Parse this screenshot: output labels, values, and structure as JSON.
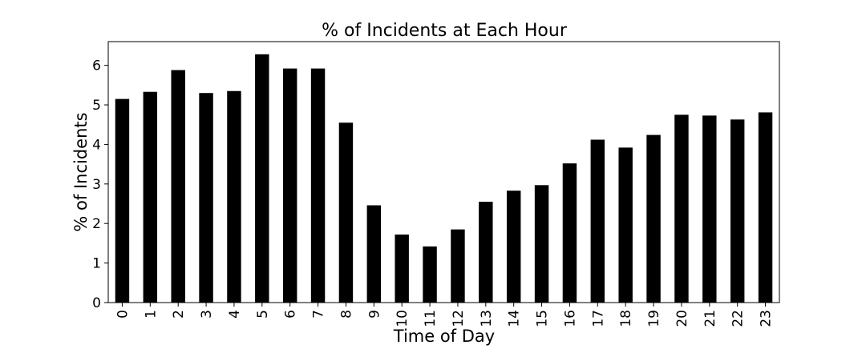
{
  "chart_data": {
    "type": "bar",
    "title": "% of Incidents at Each Hour",
    "xlabel": "Time of Day",
    "ylabel": "% of Incidents",
    "categories": [
      "0",
      "1",
      "2",
      "3",
      "4",
      "5",
      "6",
      "7",
      "8",
      "9",
      "10",
      "11",
      "12",
      "13",
      "14",
      "15",
      "16",
      "17",
      "18",
      "19",
      "20",
      "21",
      "22",
      "23"
    ],
    "values": [
      5.15,
      5.33,
      5.88,
      5.3,
      5.35,
      6.28,
      5.92,
      5.92,
      4.55,
      2.46,
      1.72,
      1.42,
      1.85,
      2.55,
      2.83,
      2.97,
      3.52,
      4.12,
      3.92,
      4.24,
      4.75,
      4.73,
      4.63,
      4.81
    ],
    "ylim": [
      0,
      6.6
    ],
    "yticks": [
      0,
      1,
      2,
      3,
      4,
      5,
      6
    ],
    "grid": false,
    "legend": "none",
    "colors": {
      "bar": "#000000",
      "axis": "#000000",
      "background": "#ffffff"
    }
  }
}
